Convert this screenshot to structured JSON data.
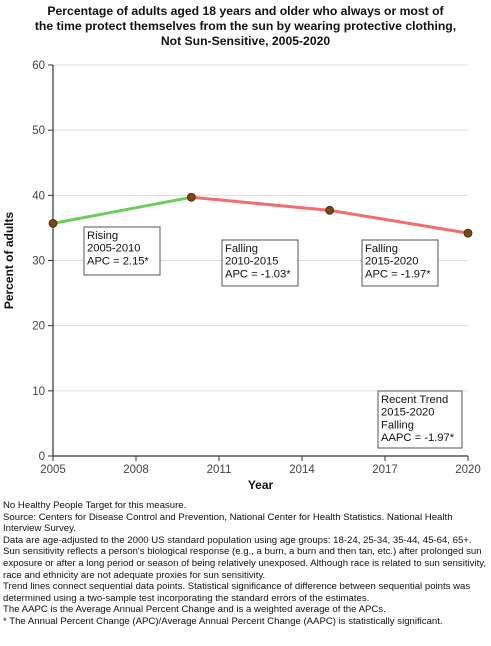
{
  "title_lines": [
    "Percentage of adults aged 18 years and older who always or most of",
    "the time protect themselves from the sun by wearing protective clothing,",
    "Not Sun-Sensitive,  2005-2020"
  ],
  "chart_data": {
    "type": "line",
    "title": "Percentage of adults aged 18 years and older who always or most of the time protect themselves from the sun by wearing protective clothing, Not Sun-Sensitive,  2005-2020",
    "xlabel": "Year",
    "ylabel": "Percent of adults",
    "xlim": [
      2005,
      2020
    ],
    "ylim": [
      0,
      60
    ],
    "x_ticks": [
      "2005",
      "2008",
      "2011",
      "2014",
      "2017",
      "2020"
    ],
    "y_ticks": [
      "0",
      "10",
      "20",
      "30",
      "40",
      "50",
      "60"
    ],
    "grid": true,
    "points": [
      {
        "x": 2005,
        "y": 35.7
      },
      {
        "x": 2010,
        "y": 39.7
      },
      {
        "x": 2015,
        "y": 37.7
      },
      {
        "x": 2020,
        "y": 34.2
      }
    ],
    "segments": [
      {
        "x": [
          2005,
          2010
        ],
        "y": [
          35.7,
          39.7
        ],
        "color": "#6cce5a",
        "trend": "rising"
      },
      {
        "x": [
          2010,
          2015
        ],
        "y": [
          39.7,
          37.7
        ],
        "color": "#f26d6d",
        "trend": "falling"
      },
      {
        "x": [
          2015,
          2020
        ],
        "y": [
          37.7,
          34.2
        ],
        "color": "#f26d6d",
        "trend": "falling"
      }
    ],
    "point_color": "#7a4a10",
    "annotations": [
      {
        "name": "annotation-rising-2005-2010",
        "lines": [
          "Rising",
          "2005-2010",
          "APC =  2.15*"
        ]
      },
      {
        "name": "annotation-falling-2010-2015",
        "lines": [
          "Falling",
          "2010-2015",
          "APC = -1.03*"
        ]
      },
      {
        "name": "annotation-falling-2015-2020",
        "lines": [
          "Falling",
          "2015-2020",
          "APC = -1.97*"
        ]
      },
      {
        "name": "annotation-recent-trend",
        "lines": [
          "Recent Trend",
          "2015-2020",
          "Falling",
          "AAPC = -1.97*"
        ]
      }
    ]
  },
  "footer_lines": [
    "No Healthy People Target for this measure.",
    "Source: Centers for Disease Control and Prevention, National Center for Health Statistics. National Health Interview Survey.",
    "Data are age-adjusted to the 2000 US standard population using age groups: 18-24, 25-34, 35-44, 45-64, 65+.",
    "Sun sensitivity reflects a person's biological response (e.g., a burn, a burn and then tan, etc.) after prolonged sun exposure or after a long period or season of being relatively unexposed. Although race is related to sun sensitivity, race and ethnicity are not adequate proxies for sun sensitivity.",
    "Trend lines connect sequential data points. Statistical significance of difference between sequential points was determined using a two-sample test incorporating the standard errors of the estimates.",
    "The AAPC is the Average Annual Percent Change and is a weighted average of the APCs.",
    "* The Annual Percent Change (APC)/Average Annual Percent Change (AAPC) is statistically significant."
  ]
}
